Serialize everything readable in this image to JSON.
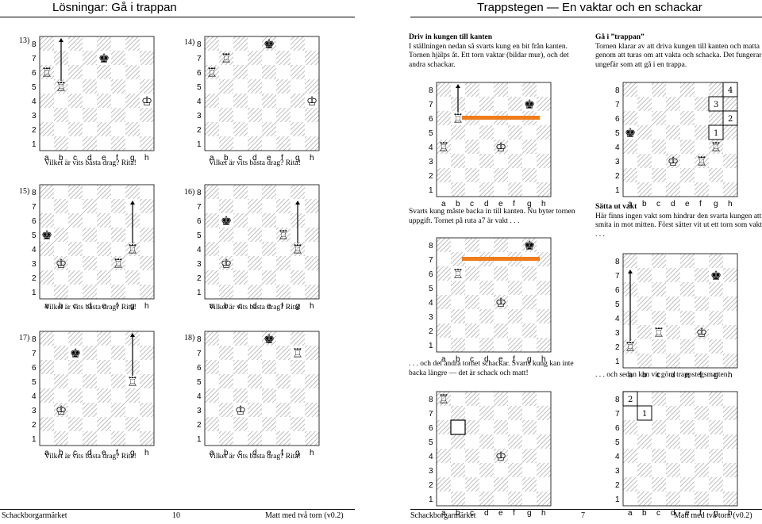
{
  "left_page": {
    "title": "Lösningar: Gå i trappan",
    "footer_left": "Schackborgarmärket",
    "footer_page": "10",
    "footer_right": "Matt med två torn (v0.2)",
    "question": "Vilket är vits bästa drag? Rita!",
    "problems": [
      {
        "label": "13)"
      },
      {
        "label": "14)"
      },
      {
        "label": "15)"
      },
      {
        "label": "16)"
      },
      {
        "label": "17)"
      },
      {
        "label": "18)"
      }
    ]
  },
  "right_page": {
    "title": "Trappstegen — En vaktar och en schackar",
    "footer_left": "Schackborgarmärket",
    "footer_page": "7",
    "footer_right": "Matt med två torn (v0.2)",
    "sec1_heading": "Driv in kungen till kanten",
    "sec1_text": "I ställningen nedan så svarts kung en bit från kanten. Tornen hjälps åt. Ett torn vaktar (bildar mur), och det andra schackar.",
    "sec2_heading": "Gå i ”trappan”",
    "sec2_text": "Tornen klarar av att driva kungen till kanten och matta genom att turas om att vakta och schacka. Det fungerar ungefär som att gå i en trappa.",
    "cap1": "Svarts kung måste backa in till kanten. Nu byter tornen uppgift. Tornet på ruta a7 är vakt . . .",
    "cap2": ". . . och det andra tornet schackar. Svarts kung kan inte backa längre — det är schack och matt!",
    "sec3_heading": "Sätta ut vakt",
    "sec3_text": "Här finns ingen vakt som hindrar den svarta kungen att smita in mot mitten. Först sätter vit ut ett torn som vakt . . .",
    "cap3": ". . . och sedan kan vit göra trappstegsmatten."
  },
  "board": {
    "files": [
      "a",
      "b",
      "c",
      "d",
      "e",
      "f",
      "g",
      "h"
    ],
    "ranks": [
      "8",
      "7",
      "6",
      "5",
      "4",
      "3",
      "2",
      "1"
    ],
    "piece_glyphs": {
      "wK": "♔",
      "wR": "♖",
      "bK": "♚"
    },
    "steps_a": [
      "4",
      "3",
      "2",
      "1"
    ],
    "steps_b": [
      "2",
      "1"
    ],
    "colors": {
      "light": "#ffffff",
      "hatch": "#bdbdbd",
      "guard": "#ef7d1d",
      "text": "#000000"
    }
  }
}
